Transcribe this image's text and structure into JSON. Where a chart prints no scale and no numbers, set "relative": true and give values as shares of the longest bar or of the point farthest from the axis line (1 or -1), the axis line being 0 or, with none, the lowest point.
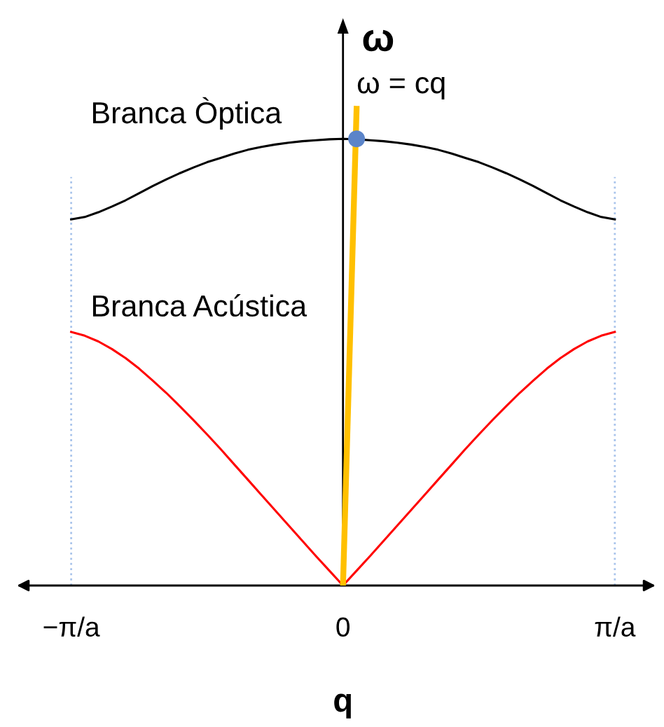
{
  "chart_data": {
    "type": "line",
    "relative": true,
    "xlabel": "q",
    "ylabel": "ω",
    "tick_labels": "x",
    "categories": [
      "−π/a",
      null,
      null,
      null,
      null,
      null,
      null,
      null,
      null,
      null,
      null,
      null,
      null,
      null,
      null,
      null,
      null,
      null,
      null,
      null,
      "0",
      null,
      null,
      null,
      null,
      null,
      null,
      null,
      null,
      null,
      null,
      null,
      null,
      null,
      null,
      null,
      null,
      null,
      null,
      null,
      "π/a"
    ],
    "series": [
      {
        "name": "Branca Òptica",
        "color": "#000000",
        "values": [
          0.768,
          0.773,
          0.783,
          0.795,
          0.808,
          0.823,
          0.838,
          0.852,
          0.865,
          0.877,
          0.888,
          0.897,
          0.906,
          0.914,
          0.92,
          0.925,
          0.929,
          0.932,
          0.934,
          0.936,
          0.937,
          0.936,
          0.934,
          0.932,
          0.929,
          0.925,
          0.92,
          0.914,
          0.906,
          0.897,
          0.888,
          0.877,
          0.865,
          0.852,
          0.838,
          0.823,
          0.808,
          0.795,
          0.783,
          0.773,
          0.768
        ]
      },
      {
        "name": "Branca Acústica",
        "color": "#ff0000",
        "values": [
          0.532,
          0.524,
          0.512,
          0.496,
          0.477,
          0.455,
          0.43,
          0.404,
          0.376,
          0.347,
          0.317,
          0.286,
          0.254,
          0.222,
          0.19,
          0.158,
          0.126,
          0.094,
          0.062,
          0.031,
          0,
          0.031,
          0.062,
          0.094,
          0.126,
          0.158,
          0.19,
          0.222,
          0.254,
          0.286,
          0.317,
          0.347,
          0.376,
          0.404,
          0.43,
          0.455,
          0.477,
          0.496,
          0.512,
          0.524,
          0.532
        ]
      },
      {
        "name": "ω = cq",
        "color": "#ffc000",
        "values": [
          null,
          null,
          null,
          null,
          null,
          null,
          null,
          null,
          null,
          null,
          null,
          null,
          null,
          null,
          null,
          null,
          null,
          null,
          null,
          null,
          0,
          1,
          null,
          null,
          null,
          null,
          null,
          null,
          null,
          null,
          null,
          null,
          null,
          null,
          null,
          null,
          null,
          null,
          null,
          null,
          null
        ]
      },
      {
        "type": "scatter",
        "marker": "circle",
        "color": "#5b84c9",
        "values": [
          null,
          null,
          null,
          null,
          null,
          null,
          null,
          null,
          null,
          null,
          null,
          null,
          null,
          null,
          null,
          null,
          null,
          null,
          null,
          null,
          null,
          0.937,
          null,
          null,
          null,
          null,
          null,
          null,
          null,
          null,
          null,
          null,
          null,
          null,
          null,
          null,
          null,
          null,
          null,
          null,
          null
        ]
      }
    ],
    "ref_lines": [
      {
        "axis": "x",
        "value": "−π/a",
        "color": "#a9c4eb",
        "line_style": "dotted"
      },
      {
        "axis": "x",
        "value": "π/a",
        "color": "#a9c4eb",
        "line_style": "dotted"
      }
    ]
  }
}
